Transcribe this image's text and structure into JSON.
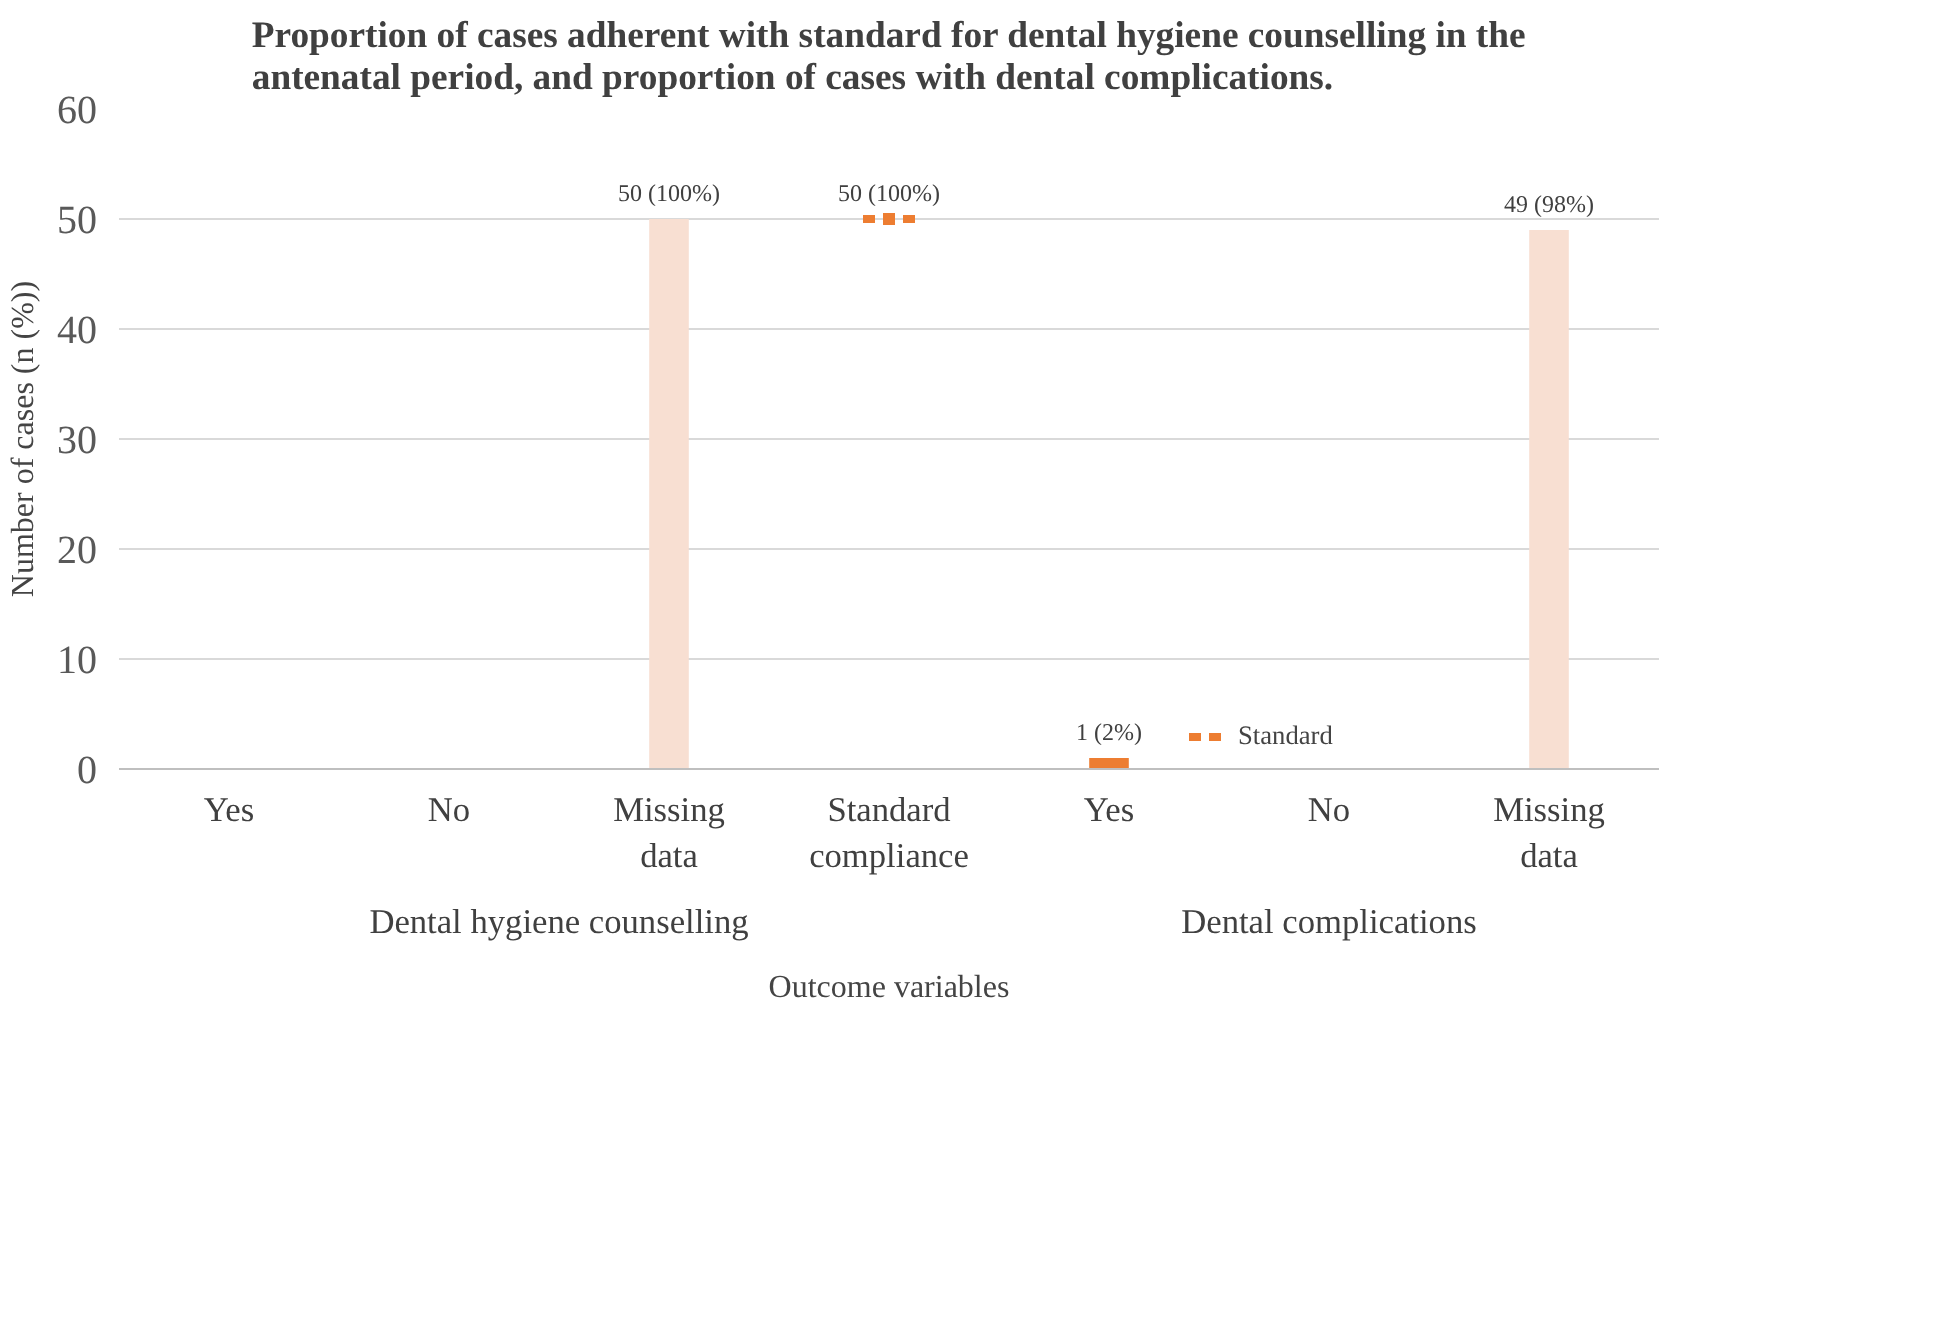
{
  "chart_data": {
    "type": "bar",
    "title": "Proportion of cases adherent with standard for dental hygiene counselling in the antenatal period, and proportion of cases with dental complications.",
    "xlabel": "Outcome variables",
    "ylabel": "Number of cases (n (%))",
    "categories": [
      "Yes",
      "No",
      "Missing data",
      "Standard compliance",
      "Yes",
      "No",
      "Missing data"
    ],
    "annotations": [
      "Dental hygiene counselling",
      "Dental complications"
    ],
    "series": [
      {
        "type": "bar",
        "colors": [
          "#f8dfd2",
          "#f8dfd2",
          "#f8dfd2",
          "#f8dfd2",
          "#ed7d31",
          "#f8dfd2",
          "#f8dfd2"
        ],
        "values": [
          null,
          null,
          50,
          null,
          1,
          null,
          49
        ],
        "value_labels": [
          null,
          null,
          "50 (100%)",
          null,
          "1 (2%)",
          null,
          "49 (98%)"
        ]
      },
      {
        "type": "line",
        "name": "Standard",
        "color": "#ed7d31",
        "line_style": "dotted",
        "marker": "square",
        "values": [
          null,
          null,
          null,
          50,
          null,
          null,
          null
        ],
        "value_labels": [
          null,
          null,
          null,
          "50 (100%)",
          null,
          null,
          null
        ]
      }
    ],
    "ylim": [
      0,
      60
    ],
    "yticks": [
      0,
      10,
      20,
      30,
      40,
      50,
      60
    ],
    "grid": "y",
    "legend": "bottom right"
  }
}
